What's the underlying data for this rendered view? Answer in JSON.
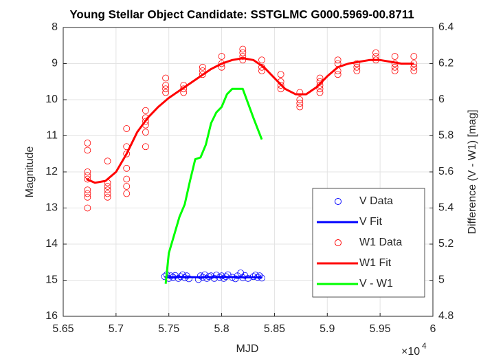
{
  "chart_data": {
    "type": "scatter",
    "title": "Young Stellar Object Candidate: SSTGLMC G000.5969-00.8711",
    "x_label": "MJD",
    "y_label": "Magnitude",
    "y2_label": "Difference (V - W1) [mag]",
    "x_exponent_base": "×10",
    "x_exponent": "4",
    "xlim": [
      56500,
      60000
    ],
    "xticks": [
      {
        "value": 56500,
        "label": "5.65"
      },
      {
        "value": 57000,
        "label": "5.7"
      },
      {
        "value": 57500,
        "label": "5.75"
      },
      {
        "value": 58000,
        "label": "5.8"
      },
      {
        "value": 58500,
        "label": "5.85"
      },
      {
        "value": 59000,
        "label": "5.9"
      },
      {
        "value": 59500,
        "label": "5.95"
      },
      {
        "value": 60000,
        "label": "6"
      }
    ],
    "ylim": [
      8,
      16
    ],
    "y_reversed": true,
    "yticks": [
      8,
      9,
      10,
      11,
      12,
      13,
      14,
      15,
      16
    ],
    "y2lim": [
      4.8,
      6.4
    ],
    "y2ticks": [
      4.8,
      5,
      5.2,
      5.4,
      5.6,
      5.8,
      6,
      6.2,
      6.4
    ],
    "grid": true,
    "legend_position": "southeast",
    "series": [
      {
        "name": "V Data",
        "type": "scatter",
        "color": "#0000ff",
        "x": [
          57460,
          57480,
          57500,
          57520,
          57540,
          57560,
          57590,
          57610,
          57630,
          57650,
          57670,
          57690,
          57780,
          57800,
          57820,
          57840,
          57860,
          57880,
          57900,
          57930,
          57950,
          57980,
          58000,
          58020,
          58040,
          58060,
          58100,
          58130,
          58150,
          58180,
          58200,
          58220,
          58250,
          58300,
          58320,
          58340,
          58360,
          58380
        ],
        "values": [
          14.9,
          14.85,
          14.95,
          14.88,
          14.92,
          14.87,
          14.95,
          14.9,
          14.85,
          14.93,
          14.88,
          14.96,
          14.98,
          14.88,
          14.92,
          14.85,
          14.95,
          14.9,
          14.88,
          14.95,
          14.86,
          14.92,
          14.88,
          14.95,
          14.9,
          14.85,
          14.92,
          14.96,
          14.88,
          14.8,
          14.93,
          14.87,
          14.95,
          14.9,
          14.86,
          14.92,
          14.88,
          14.94
        ]
      },
      {
        "name": "V Fit",
        "type": "line",
        "color": "#0000ff",
        "x": [
          57460,
          57600,
          57800,
          58000,
          58200,
          58380
        ],
        "values": [
          14.92,
          14.91,
          14.92,
          14.91,
          14.92,
          14.92
        ]
      },
      {
        "name": "W1 Data",
        "type": "scatter",
        "color": "#ff0000",
        "x": [
          56730,
          56730,
          56730,
          56730,
          56730,
          56730,
          56730,
          56730,
          56730,
          56920,
          56920,
          56920,
          56920,
          56920,
          56920,
          57100,
          57100,
          57100,
          57100,
          57100,
          57100,
          57100,
          57280,
          57280,
          57280,
          57280,
          57280,
          57280,
          57470,
          57470,
          57470,
          57470,
          57640,
          57640,
          57640,
          57820,
          57820,
          57820,
          58000,
          58000,
          58000,
          58200,
          58200,
          58200,
          58200,
          58380,
          58380,
          58380,
          58560,
          58560,
          58560,
          58560,
          58740,
          58740,
          58740,
          58740,
          58930,
          58930,
          58930,
          58930,
          58930,
          59100,
          59100,
          59100,
          59100,
          59280,
          59280,
          59280,
          59460,
          59460,
          59460,
          59640,
          59640,
          59640,
          59640,
          59820,
          59820,
          59820,
          59820
        ],
        "values": [
          11.2,
          11.4,
          12.0,
          12.1,
          12.2,
          12.5,
          12.6,
          12.7,
          13.0,
          11.7,
          12.3,
          12.4,
          12.5,
          12.6,
          12.7,
          10.8,
          11.3,
          11.5,
          11.9,
          12.2,
          12.4,
          12.6,
          10.3,
          10.5,
          10.6,
          10.7,
          10.9,
          11.3,
          9.4,
          9.6,
          9.7,
          9.8,
          9.6,
          9.7,
          9.8,
          9.1,
          9.2,
          9.3,
          8.8,
          9.0,
          9.1,
          8.6,
          8.7,
          8.8,
          8.9,
          8.9,
          9.1,
          9.2,
          9.3,
          9.5,
          9.6,
          9.7,
          9.8,
          10.0,
          10.1,
          10.2,
          9.4,
          9.5,
          9.6,
          9.7,
          9.8,
          8.9,
          9.0,
          9.2,
          9.3,
          9.0,
          9.1,
          9.2,
          8.7,
          8.8,
          8.9,
          8.8,
          9.0,
          9.1,
          9.2,
          8.8,
          9.0,
          9.1,
          9.2
        ]
      },
      {
        "name": "W1 Fit",
        "type": "line",
        "color": "#ff0000",
        "x": [
          56720,
          56800,
          56900,
          57000,
          57100,
          57200,
          57300,
          57400,
          57500,
          57600,
          57700,
          57800,
          57900,
          58000,
          58100,
          58200,
          58300,
          58400,
          58500,
          58600,
          58700,
          58800,
          58900,
          59000,
          59100,
          59200,
          59300,
          59400,
          59500,
          59600,
          59700,
          59820
        ],
        "values": [
          12.2,
          12.3,
          12.25,
          12.0,
          11.5,
          10.9,
          10.5,
          10.2,
          9.95,
          9.75,
          9.55,
          9.35,
          9.15,
          9.0,
          8.9,
          8.85,
          8.9,
          9.1,
          9.4,
          9.7,
          9.85,
          9.85,
          9.65,
          9.35,
          9.1,
          9.0,
          8.95,
          8.9,
          8.9,
          8.95,
          9.0,
          9.0
        ]
      },
      {
        "name": "V - W1",
        "type": "line",
        "color": "#00ff00",
        "axis": "y2",
        "x": [
          57470,
          57500,
          57550,
          57600,
          57650,
          57700,
          57750,
          57800,
          57850,
          57900,
          57950,
          58000,
          58050,
          58100,
          58150,
          58200,
          58250,
          58300,
          58380
        ],
        "values": [
          4.98,
          5.15,
          5.25,
          5.35,
          5.42,
          5.55,
          5.67,
          5.68,
          5.75,
          5.87,
          5.93,
          5.96,
          6.03,
          6.06,
          6.06,
          6.06,
          5.98,
          5.9,
          5.78
        ]
      }
    ]
  }
}
